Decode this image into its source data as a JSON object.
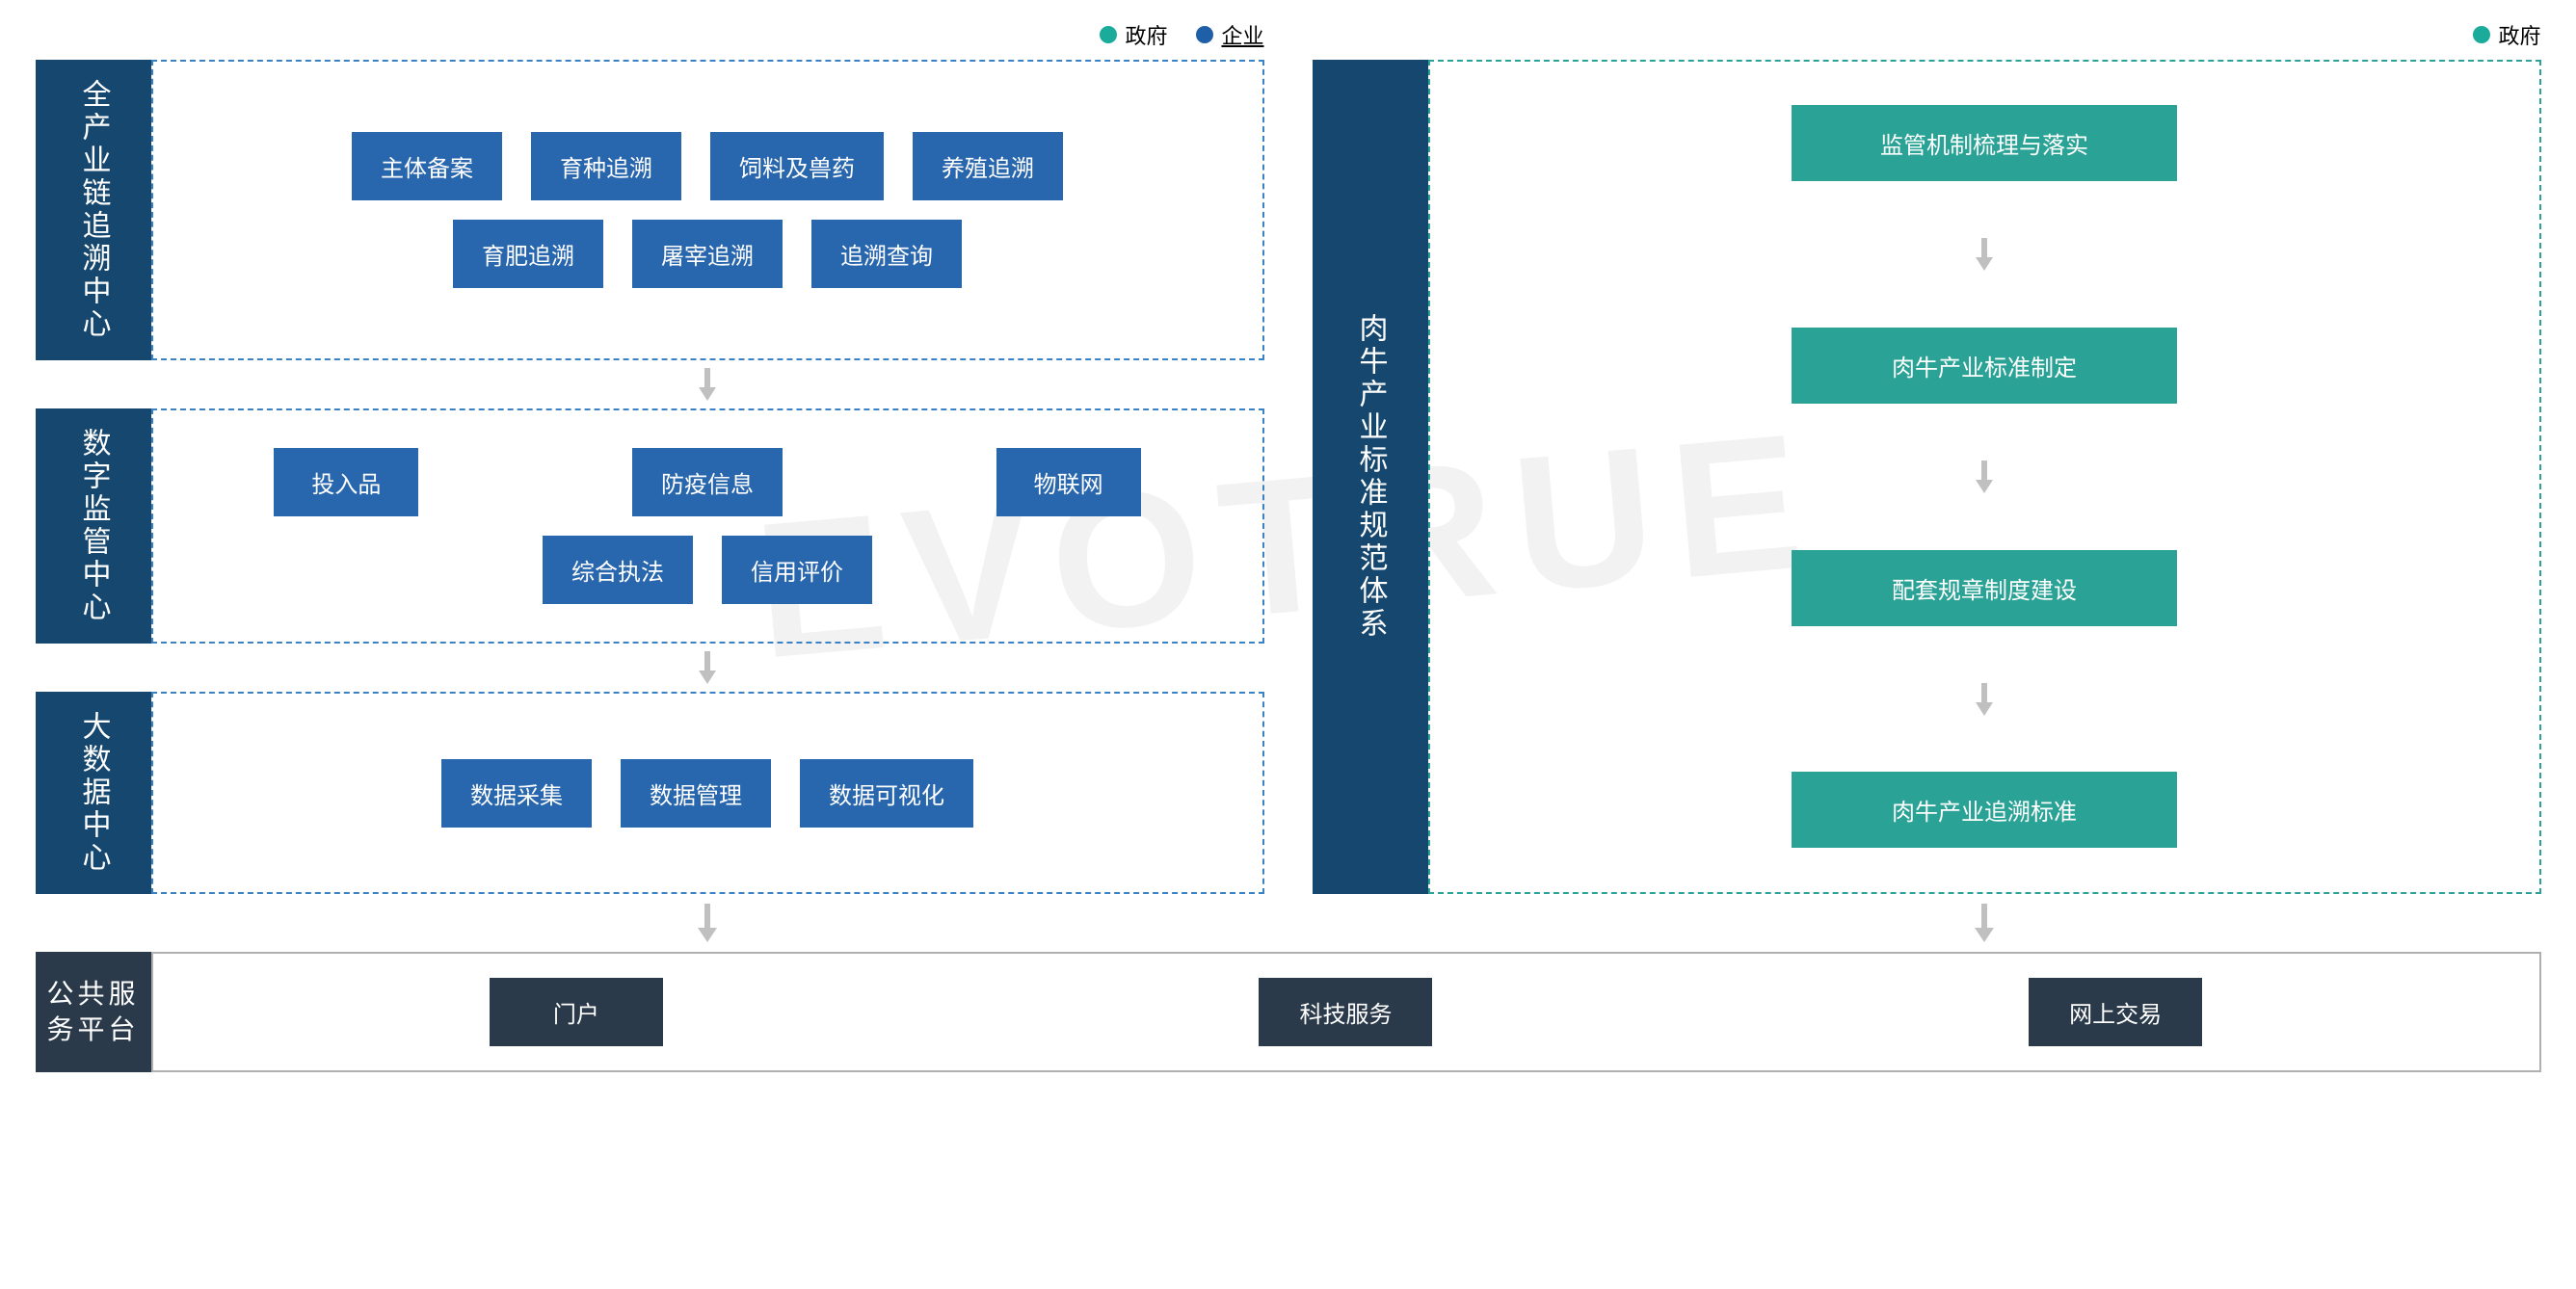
{
  "type": "flowchart",
  "colors": {
    "gov": "#1aab9b",
    "enterprise": "#1f5fa8",
    "label_bg_left": "#16476f",
    "node_blue": "#2866ad",
    "node_teal": "#2aa396",
    "dashed_blue": "#3b82c4",
    "dashed_teal": "#2aa396",
    "bottom_label_bg": "#2b3a4a",
    "bottom_node_bg": "#2b3a4a",
    "arrow": "#c0c0c0",
    "border_gray": "#b0b0b0",
    "text_white": "#ffffff",
    "legend_text": "#333333"
  },
  "legend_left": [
    {
      "label": "政府",
      "color_key": "gov"
    },
    {
      "label": "企业",
      "color_key": "enterprise",
      "underline": true
    }
  ],
  "legend_right": [
    {
      "label": "政府",
      "color_key": "gov"
    }
  ],
  "left_sections": [
    {
      "title": "全产业链追溯中心",
      "rows": [
        [
          "主体备案",
          "育种追溯",
          "饲料及兽药",
          "养殖追溯"
        ],
        [
          "育肥追溯",
          "屠宰追溯",
          "追溯查询"
        ]
      ]
    },
    {
      "title": "数字监管中心",
      "rows": [
        [
          "投入品",
          "防疫信息",
          "物联网"
        ],
        [
          "综合执法",
          "信用评价"
        ]
      ]
    },
    {
      "title": "大数据中心",
      "rows": [
        [
          "数据采集",
          "数据管理",
          "数据可视化"
        ]
      ]
    }
  ],
  "right_section": {
    "title": "肉牛产业标准规范体系",
    "items": [
      "监管机制梳理与落实",
      "肉牛产业标准制定",
      "配套规章制度建设",
      "肉牛产业追溯标准"
    ]
  },
  "bottom": {
    "title": "公共服务平台",
    "items": [
      "门户",
      "科技服务",
      "网上交易"
    ]
  },
  "watermark": "EVOTRUE"
}
